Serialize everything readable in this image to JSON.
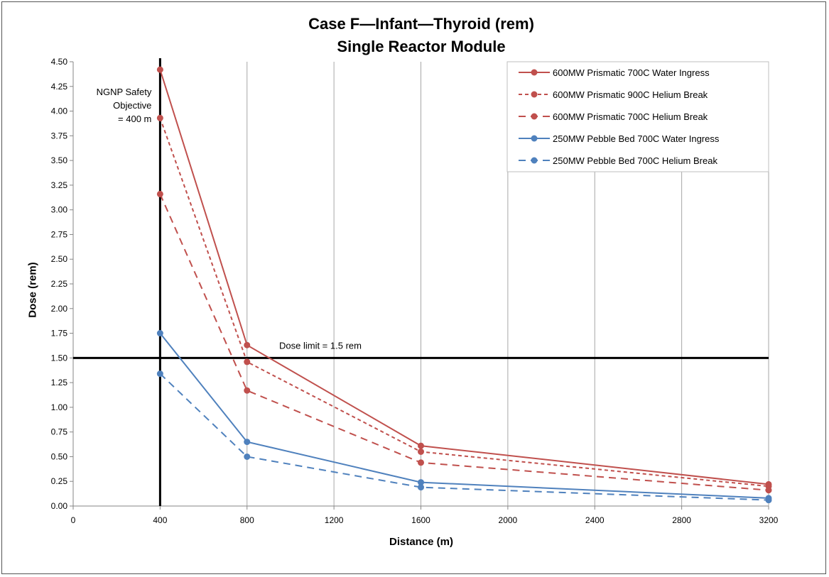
{
  "chart_data": {
    "type": "line",
    "title": "Case F—Infant—Thyroid (rem)",
    "subtitle": "Single Reactor Module",
    "xlabel": "Distance (m)",
    "ylabel": "Dose (rem)",
    "xlim": [
      0,
      3200
    ],
    "ylim": [
      0,
      4.5
    ],
    "x_ticks": [
      0,
      400,
      800,
      1200,
      1600,
      2000,
      2400,
      2800,
      3200
    ],
    "y_ticks": [
      0,
      0.25,
      0.5,
      0.75,
      1.0,
      1.25,
      1.5,
      1.75,
      2.0,
      2.25,
      2.5,
      2.75,
      3.0,
      3.25,
      3.5,
      3.75,
      4.0,
      4.25,
      4.5
    ],
    "grid": "vertical",
    "legend_position": "top-right",
    "series": [
      {
        "name": "600MW Prismatic 700C Water Ingress",
        "color": "#c0504d",
        "dash": "solid",
        "x": [
          400,
          800,
          1600,
          3200
        ],
        "y": [
          4.42,
          1.63,
          0.61,
          0.22
        ]
      },
      {
        "name": "600MW Prismatic 900C Helium Break",
        "color": "#c0504d",
        "dash": "short-dash",
        "x": [
          400,
          800,
          1600,
          3200
        ],
        "y": [
          3.93,
          1.46,
          0.55,
          0.2
        ]
      },
      {
        "name": "600MW Prismatic 700C Helium Break",
        "color": "#c0504d",
        "dash": "long-dash",
        "x": [
          400,
          800,
          1600,
          3200
        ],
        "y": [
          3.16,
          1.17,
          0.44,
          0.16
        ]
      },
      {
        "name": "250MW Pebble Bed 700C Water Ingress",
        "color": "#4f81bd",
        "dash": "solid",
        "x": [
          400,
          800,
          1600,
          3200
        ],
        "y": [
          1.75,
          0.65,
          0.24,
          0.08
        ]
      },
      {
        "name": "250MW Pebble Bed 700C Helium Break",
        "color": "#4f81bd",
        "dash": "long-dash",
        "x": [
          400,
          800,
          1600,
          3200
        ],
        "y": [
          1.34,
          0.5,
          0.19,
          0.06
        ]
      }
    ],
    "reference_lines": [
      {
        "orientation": "horizontal",
        "value": 1.5,
        "label": "Dose limit = 1.5 rem"
      },
      {
        "orientation": "vertical",
        "value": 400,
        "label_lines": [
          "NGNP Safety",
          "Objective",
          "= 400 m"
        ]
      }
    ]
  }
}
